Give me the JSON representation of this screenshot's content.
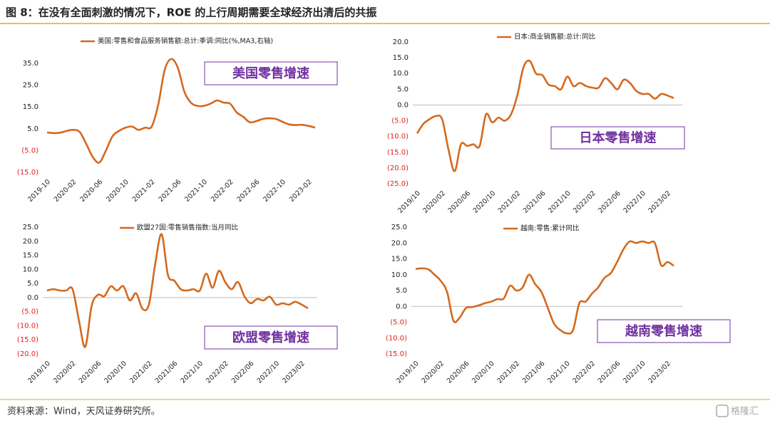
{
  "title": "图 8：在没有全面刺激的情况下，ROE 的上行周期需要全球经济出清后的共振",
  "source": "资料来源：Wind，天风证券研究所。",
  "watermark": "格隆汇",
  "negative_tick_color": "#e02020",
  "annotation_color": "#7030a0",
  "chart_data": [
    {
      "type": "line",
      "annotation": "美国零售增速",
      "zero_line": false,
      "legend": "top",
      "categories": [
        "2019-10",
        null,
        null,
        null,
        "2020-02",
        null,
        null,
        null,
        "2020-06",
        null,
        null,
        null,
        "2020-10",
        null,
        null,
        null,
        "2021-02",
        null,
        null,
        null,
        "2021-06",
        null,
        null,
        null,
        "2021-10",
        null,
        null,
        null,
        "2022-02",
        null,
        null,
        null,
        "2022-06",
        null,
        null,
        null,
        "2022-10",
        null,
        null,
        null,
        "2023-02",
        null
      ],
      "series": [
        {
          "name": "美国:零售和食品服务销售额:总计:季调:同比(%,MA3,右轴)",
          "color": "#d4691e",
          "values": [
            3.3,
            3.0,
            3.2,
            4.0,
            4.5,
            3.5,
            -2,
            -8,
            -10.5,
            -5,
            1.5,
            4,
            5.5,
            6,
            4.5,
            5.5,
            6,
            16,
            32,
            37,
            33,
            22,
            17,
            15.5,
            15.5,
            16.5,
            18,
            17,
            16.5,
            12.5,
            10.5,
            8,
            8.5,
            9.5,
            9.8,
            9.5,
            8.2,
            7,
            6.7,
            6.8,
            6.3,
            5.5
          ]
        }
      ],
      "ylim": [
        -15,
        40
      ],
      "yticks": [
        {
          "value": 35,
          "label": "35.0"
        },
        {
          "value": 25,
          "label": "25.0"
        },
        {
          "value": 15,
          "label": "15.0"
        },
        {
          "value": 5,
          "label": "5.0"
        },
        {
          "value": -5,
          "label": "(5.0)"
        },
        {
          "value": -15,
          "label": "(15.0)"
        }
      ]
    },
    {
      "type": "line",
      "annotation": "日本零售增速",
      "zero_line": true,
      "legend": "top",
      "categories": [
        "2019/10",
        null,
        null,
        null,
        "2020/02",
        null,
        null,
        null,
        "2020/06",
        null,
        null,
        null,
        "2020/10",
        null,
        null,
        null,
        "2021/02",
        null,
        null,
        null,
        "2021/06",
        null,
        null,
        null,
        "2021/10",
        null,
        null,
        null,
        "2022/02",
        null,
        null,
        null,
        "2022/06",
        null,
        null,
        null,
        "2022/10",
        null,
        null,
        null,
        "2023/02",
        null
      ],
      "series": [
        {
          "name": "日本:商业销售额:总计:同比",
          "color": "#d4691e",
          "values": [
            -9,
            -6,
            -4.5,
            -3.5,
            -4.5,
            -14,
            -21,
            -12.5,
            -13,
            -12.5,
            -13,
            -3,
            -5.5,
            -4,
            -5,
            -3,
            3,
            12,
            14,
            10,
            9.5,
            6.5,
            6,
            5,
            9,
            6,
            7,
            6,
            5.5,
            5.5,
            8.5,
            7,
            5,
            8,
            7,
            4.5,
            3.5,
            3.5,
            2,
            3.5,
            3.0,
            2.2
          ]
        }
      ],
      "ylim": [
        -25,
        20
      ],
      "yticks": [
        {
          "value": 20,
          "label": "20.0"
        },
        {
          "value": 15,
          "label": "15.0"
        },
        {
          "value": 10,
          "label": "10.0"
        },
        {
          "value": 5,
          "label": "5.0"
        },
        {
          "value": 0,
          "label": "0.0"
        },
        {
          "value": -5,
          "label": "(5.0)"
        },
        {
          "value": -10,
          "label": "(10.0)"
        },
        {
          "value": -15,
          "label": "(15.0)"
        },
        {
          "value": -20,
          "label": "(20.0)"
        },
        {
          "value": -25,
          "label": "(25.0)"
        }
      ]
    },
    {
      "type": "line",
      "annotation": "欧盟零售增速",
      "zero_line": true,
      "legend": "top",
      "categories": [
        "2019/10",
        null,
        null,
        null,
        "2020/02",
        null,
        null,
        null,
        "2020/06",
        null,
        null,
        null,
        "2020/10",
        null,
        null,
        null,
        "2021/02",
        null,
        null,
        null,
        "2021/06",
        null,
        null,
        null,
        "2021/10",
        null,
        null,
        null,
        "2022/02",
        null,
        null,
        null,
        "2022/06",
        null,
        null,
        null,
        "2022/10",
        null,
        null,
        null,
        "2023/02",
        null
      ],
      "series": [
        {
          "name": "欧盟27国:零售销售指数:当月同比",
          "color": "#d4691e",
          "values": [
            2.5,
            3,
            2.5,
            2.5,
            3,
            -8,
            -17.5,
            -3,
            1,
            0.5,
            4,
            2.5,
            4,
            -1,
            1.5,
            -4,
            -2.5,
            12,
            22.5,
            8,
            6,
            3,
            2.5,
            3,
            2.5,
            8.5,
            3.5,
            9.5,
            5.5,
            3,
            5.5,
            0.5,
            -2,
            -0.5,
            -1,
            0.3,
            -2.5,
            -2,
            -2.5,
            -1.5,
            -2.5,
            -3.8
          ]
        }
      ],
      "ylim": [
        -20,
        25
      ],
      "yticks": [
        {
          "value": 25,
          "label": "25.0"
        },
        {
          "value": 20,
          "label": "20.0"
        },
        {
          "value": 15,
          "label": "15.0"
        },
        {
          "value": 10,
          "label": "10.0"
        },
        {
          "value": 5,
          "label": "5.0"
        },
        {
          "value": 0,
          "label": "0.0"
        },
        {
          "value": -5,
          "label": "(5.0)"
        },
        {
          "value": -10,
          "label": "(10.0)"
        },
        {
          "value": -15,
          "label": "(15.0)"
        },
        {
          "value": -20,
          "label": "(20.0)"
        }
      ]
    },
    {
      "type": "line",
      "annotation": "越南零售增速",
      "zero_line": true,
      "legend": "top",
      "categories": [
        "2019/10",
        null,
        null,
        null,
        "2020/02",
        null,
        null,
        null,
        "2020/06",
        null,
        null,
        null,
        "2020/10",
        null,
        null,
        null,
        "2021/02",
        null,
        null,
        null,
        "2021/06",
        null,
        null,
        null,
        "2021/10",
        null,
        null,
        null,
        "2022/02",
        null,
        null,
        null,
        "2022/06",
        null,
        null,
        null,
        "2022/10",
        null,
        null,
        null,
        "2023/02",
        null
      ],
      "series": [
        {
          "name": "越南:零售:累计同比",
          "color": "#d4691e",
          "values": [
            11.8,
            12,
            11.7,
            10,
            8,
            4.5,
            -4.5,
            -3.5,
            -0.5,
            -0.2,
            0.3,
            1,
            1.5,
            2.3,
            2.5,
            6.5,
            5,
            6,
            10,
            7,
            4.5,
            -0.5,
            -5.5,
            -7.5,
            -8.5,
            -7.5,
            1,
            1.5,
            4,
            6,
            9,
            10.5,
            14,
            18,
            20.5,
            20,
            20.5,
            20,
            20,
            13,
            14,
            12.8
          ]
        }
      ],
      "ylim": [
        -15,
        25
      ],
      "yticks": [
        {
          "value": 25,
          "label": "25.0"
        },
        {
          "value": 20,
          "label": "20.0"
        },
        {
          "value": 15,
          "label": "15.0"
        },
        {
          "value": 10,
          "label": "10.0"
        },
        {
          "value": 5,
          "label": "5.0"
        },
        {
          "value": 0,
          "label": "0.0"
        },
        {
          "value": -5,
          "label": "(5.0)"
        },
        {
          "value": -10,
          "label": "(10.0)"
        },
        {
          "value": -15,
          "label": "(15.0)"
        }
      ]
    }
  ]
}
